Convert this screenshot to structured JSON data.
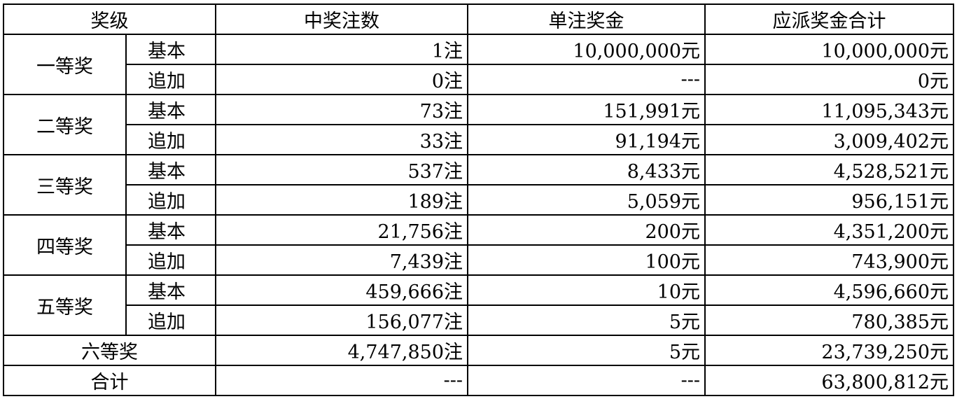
{
  "headers": [
    "奖级",
    "中奖注数",
    "单注奖金",
    "应派奖金合计"
  ],
  "tiers": [
    {
      "name": "一等奖",
      "rows": [
        {
          "type": "基本",
          "count": "1注",
          "prize": "10,000,000元",
          "total": "10,000,000元"
        },
        {
          "type": "追加",
          "count": "0注",
          "prize": "---",
          "total": "0元"
        }
      ]
    },
    {
      "name": "二等奖",
      "rows": [
        {
          "type": "基本",
          "count": "73注",
          "prize": "151,991元",
          "total": "11,095,343元"
        },
        {
          "type": "追加",
          "count": "33注",
          "prize": "91,194元",
          "total": "3,009,402元"
        }
      ]
    },
    {
      "name": "三等奖",
      "rows": [
        {
          "type": "基本",
          "count": "537注",
          "prize": "8,433元",
          "total": "4,528,521元"
        },
        {
          "type": "追加",
          "count": "189注",
          "prize": "5,059元",
          "total": "956,151元"
        }
      ]
    },
    {
      "name": "四等奖",
      "rows": [
        {
          "type": "基本",
          "count": "21,756注",
          "prize": "200元",
          "total": "4,351,200元"
        },
        {
          "type": "追加",
          "count": "7,439注",
          "prize": "100元",
          "total": "743,900元"
        }
      ]
    },
    {
      "name": "五等奖",
      "rows": [
        {
          "type": "基本",
          "count": "459,666注",
          "prize": "10元",
          "total": "4,596,660元"
        },
        {
          "type": "追加",
          "count": "156,077注",
          "prize": "5元",
          "total": "780,385元"
        }
      ]
    }
  ],
  "sixth": {
    "name": "六等奖",
    "count": "4,747,850注",
    "prize": "5元",
    "total": "23,739,250元"
  },
  "sum": {
    "name": "合计",
    "count": "---",
    "prize": "---",
    "total": "63,800,812元"
  }
}
